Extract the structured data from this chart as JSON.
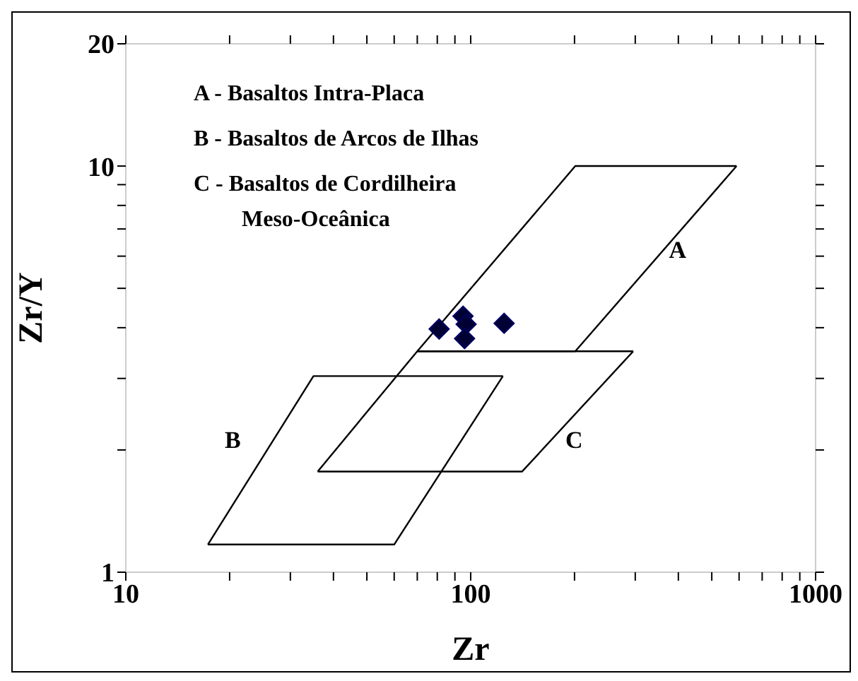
{
  "chart_data": {
    "type": "scatter",
    "xlabel": "Zr",
    "ylabel": "Zr/Y",
    "log": "xy",
    "grid": false,
    "xlim": [
      10,
      1000
    ],
    "ylim": [
      1,
      20
    ],
    "xticks": [
      10,
      {
        "value": 20,
        "label": null
      },
      {
        "value": 30,
        "label": null
      },
      {
        "value": 40,
        "label": null
      },
      {
        "value": 50,
        "label": null
      },
      {
        "value": 60,
        "label": null
      },
      {
        "value": 70,
        "label": null
      },
      {
        "value": 80,
        "label": null
      },
      {
        "value": 90,
        "label": null
      },
      100,
      {
        "value": 200,
        "label": null
      },
      {
        "value": 300,
        "label": null
      },
      {
        "value": 400,
        "label": null
      },
      {
        "value": 500,
        "label": null
      },
      {
        "value": 600,
        "label": null
      },
      {
        "value": 700,
        "label": null
      },
      {
        "value": 800,
        "label": null
      },
      {
        "value": 900,
        "label": null
      },
      1000
    ],
    "yticks": [
      1,
      {
        "value": 2,
        "label": null
      },
      {
        "value": 3,
        "label": null
      },
      {
        "value": 4,
        "label": null
      },
      {
        "value": 5,
        "label": null
      },
      {
        "value": 6,
        "label": null
      },
      {
        "value": 7,
        "label": null
      },
      {
        "value": 8,
        "label": null
      },
      {
        "value": 9,
        "label": null
      },
      10,
      20
    ],
    "series": [
      {
        "type": "line",
        "color": "#000000",
        "marker": "none",
        "x": [
          70,
          201,
          590
        ],
        "values": [
          3.5,
          10,
          10
        ]
      },
      {
        "type": "line",
        "color": "#000000",
        "marker": "none",
        "x": [
          70,
          201,
          590
        ],
        "values": [
          3.5,
          3.5,
          10
        ]
      },
      {
        "type": "line",
        "color": "#000000",
        "marker": "none",
        "x": [
          36,
          70,
          296
        ],
        "values": [
          1.77,
          3.5,
          3.5
        ]
      },
      {
        "type": "line",
        "color": "#000000",
        "marker": "none",
        "x": [
          36,
          141,
          296
        ],
        "values": [
          1.77,
          1.77,
          3.5
        ]
      },
      {
        "type": "line",
        "color": "#000000",
        "marker": "none",
        "x": [
          17.3,
          35,
          124
        ],
        "values": [
          1.17,
          3.04,
          3.04
        ]
      },
      {
        "type": "line",
        "color": "#000000",
        "marker": "none",
        "x": [
          17.3,
          60,
          124
        ],
        "values": [
          1.17,
          1.17,
          3.04
        ]
      },
      {
        "color": "#000033",
        "marker": "diamond",
        "x": [
          81,
          95,
          97,
          96,
          125
        ],
        "values": [
          3.97,
          4.27,
          4.08,
          3.76,
          4.1
        ]
      }
    ],
    "annotations": [
      "A - Basaltos Intra-Placa",
      "B - Basaltos de Arcos de Ilhas",
      "C - Basaltos de Cordilheira\nMeso-Oceânica",
      "A",
      "B",
      "C"
    ]
  }
}
